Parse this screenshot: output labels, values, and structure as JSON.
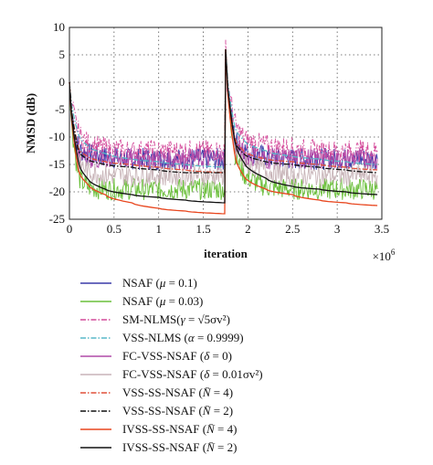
{
  "chart_data": {
    "type": "line",
    "xlabel": "iteration",
    "ylabel": "NMSD (dB)",
    "x_multiplier_label": "×10^6",
    "xlim": [
      0,
      3.5
    ],
    "ylim": [
      -25,
      10
    ],
    "x_ticks": [
      "0",
      "0.5",
      "1",
      "1.5",
      "2",
      "2.5",
      "3",
      "3.5"
    ],
    "y_ticks": [
      "10",
      "5",
      "0",
      "-5",
      "-10",
      "-15",
      "-20",
      "-25"
    ],
    "grid": true,
    "legend_position": "below",
    "x": [
      0,
      0.1,
      0.2,
      0.4,
      0.7,
      1.0,
      1.3,
      1.74,
      1.75,
      1.85,
      1.95,
      2.2,
      2.5,
      2.8,
      3.1,
      3.45
    ],
    "series": [
      {
        "name": "NSAF (μ = 0.1)",
        "color": "#3a3aa8",
        "dash": "solid",
        "noisy": true,
        "y": [
          0,
          -12,
          -13,
          -13.5,
          -14,
          -14,
          -14,
          -14,
          6,
          -10,
          -12,
          -13.5,
          -14,
          -14,
          -14,
          -14
        ]
      },
      {
        "name": "NSAF (μ = 0.03)",
        "color": "#6abf3a",
        "dash": "solid",
        "noisy": true,
        "y": [
          0,
          -17,
          -19,
          -19.5,
          -19.5,
          -19.5,
          -19.5,
          -19.5,
          6,
          -12,
          -16.5,
          -19,
          -19.5,
          -19.5,
          -19.5,
          -19.5
        ]
      },
      {
        "name": "SM-NLMS(γ = √(5σv²))",
        "color": "#d44a9a",
        "dash": "dashdot",
        "noisy": true,
        "y": [
          0,
          -9,
          -11,
          -12,
          -12.5,
          -12.5,
          -12.5,
          -12.5,
          6,
          -7,
          -10,
          -11.5,
          -12,
          -12.5,
          -12.5,
          -12.5
        ]
      },
      {
        "name": "VSS-NLMS (α = 0.9999)",
        "color": "#58b8c8",
        "dash": "dashdot",
        "noisy": false,
        "y": [
          0,
          -9.5,
          -11.5,
          -13,
          -14,
          -14.5,
          -15,
          -15.5,
          6,
          -8,
          -10.5,
          -12.5,
          -13.5,
          -14,
          -14.5,
          -15
        ]
      },
      {
        "name": "FC-VSS-NSAF (δ = 0)",
        "color": "#b04aa8",
        "dash": "solid",
        "noisy": true,
        "y": [
          0,
          -13,
          -14,
          -14,
          -14,
          -14,
          -14,
          -14,
          6,
          -11,
          -13,
          -14,
          -14,
          -14,
          -14,
          -14
        ]
      },
      {
        "name": "FC-VSS-NSAF (δ = 0.01σv²)",
        "color": "#c8b4b8",
        "dash": "solid",
        "noisy": true,
        "y": [
          0,
          -14,
          -16,
          -17,
          -17,
          -17,
          -17,
          -17,
          6,
          -12,
          -14.5,
          -16,
          -17,
          -17,
          -17,
          -17
        ]
      },
      {
        "name": "VSS-SS-NSAF (N̄ = 4)",
        "color": "#e0503a",
        "dash": "dashdot",
        "noisy": false,
        "y": [
          0,
          -12,
          -13.5,
          -14.5,
          -15,
          -15.5,
          -16,
          -16.5,
          6,
          -10,
          -12.5,
          -14,
          -14.5,
          -15,
          -15.5,
          -16
        ]
      },
      {
        "name": "VSS-SS-NSAF (N̄ = 2)",
        "color": "#111111",
        "dash": "dashdot",
        "noisy": false,
        "y": [
          0,
          -12.5,
          -14,
          -15,
          -15.5,
          -16,
          -16.5,
          -16.5,
          6,
          -10.5,
          -13,
          -14.5,
          -15,
          -15.5,
          -16,
          -16.5
        ]
      },
      {
        "name": "IVSS-SS-NSAF (N̄ = 4)",
        "color": "#e8461e",
        "dash": "solid",
        "noisy": false,
        "y": [
          0,
          -16,
          -18.5,
          -20.5,
          -22,
          -23,
          -23.5,
          -24,
          6,
          -13,
          -17,
          -19.5,
          -20.5,
          -21.5,
          -22,
          -22.5
        ]
      },
      {
        "name": "IVSS-SS-NSAF (N̄ = 2)",
        "color": "#111111",
        "dash": "solid",
        "noisy": false,
        "y": [
          0,
          -14.5,
          -17.5,
          -19.5,
          -20.5,
          -21,
          -21.5,
          -22,
          6,
          -10.5,
          -14.5,
          -17.5,
          -19,
          -19.5,
          -20,
          -20.5
        ]
      }
    ]
  },
  "legend": {
    "items": [
      {
        "main": "NSAF (",
        "var": "μ",
        "rest": " = 0.1)",
        "color": "#3a3aa8",
        "dash": "solid"
      },
      {
        "main": "NSAF (",
        "var": "μ",
        "rest": " = 0.03)",
        "color": "#6abf3a",
        "dash": "solid"
      },
      {
        "main": "SM-NLMS(",
        "var": "γ",
        "rest": " = √5σv²)",
        "color": "#d44a9a",
        "dash": "dashdot"
      },
      {
        "main": "VSS-NLMS (",
        "var": "α",
        "rest": " = 0.9999)",
        "color": "#58b8c8",
        "dash": "dashdot"
      },
      {
        "main": "FC-VSS-NSAF (",
        "var": "δ",
        "rest": " = 0)",
        "color": "#b04aa8",
        "dash": "solid"
      },
      {
        "main": "FC-VSS-NSAF (",
        "var": "δ",
        "rest": " = 0.01σv²)",
        "color": "#c8b4b8",
        "dash": "solid"
      },
      {
        "main": "VSS-SS-NSAF (",
        "var": "N̄",
        "rest": " = 4)",
        "color": "#e0503a",
        "dash": "dashdot"
      },
      {
        "main": "VSS-SS-NSAF (",
        "var": "N̄",
        "rest": " = 2)",
        "color": "#111111",
        "dash": "dashdot"
      },
      {
        "main": "IVSS-SS-NSAF (",
        "var": "N̄",
        "rest": " = 4)",
        "color": "#e8461e",
        "dash": "solid"
      },
      {
        "main": "IVSS-SS-NSAF (",
        "var": "N̄",
        "rest": " = 2)",
        "color": "#111111",
        "dash": "solid"
      }
    ]
  }
}
